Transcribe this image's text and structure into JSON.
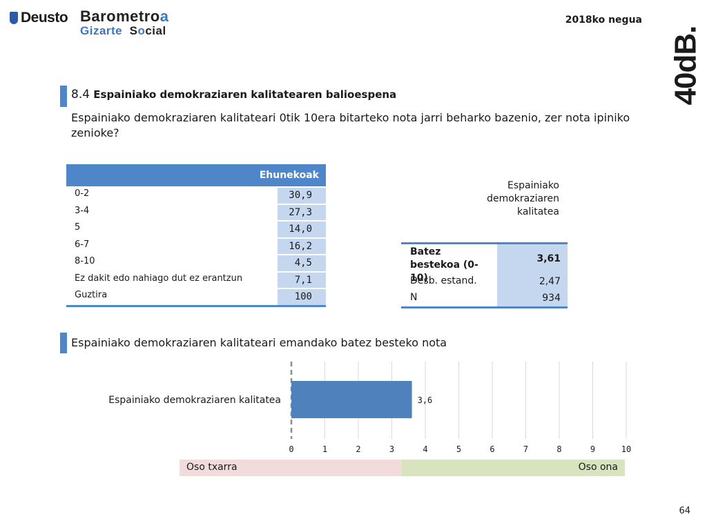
{
  "header": {
    "deusto": "Deusto",
    "barometro_main": "Barometro",
    "barometro_accent": "a",
    "gizarte": "Gizarte",
    "social_s": "S",
    "social_o": "o",
    "social_rest": "cial",
    "season": "2018ko negua",
    "brand": "40dB."
  },
  "section": {
    "number": "8.4",
    "title": "Espainiako demokraziaren kalitatearen balioespena",
    "question": "Espainiako demokraziaren kalitateari 0tik 10era bitarteko nota jarri beharko bazenio, zer nota ipiniko zenioke?"
  },
  "pct_table": {
    "header": "Ehunekoak",
    "rows": [
      {
        "label": "0-2",
        "value": "30,9"
      },
      {
        "label": "3-4",
        "value": "27,3"
      },
      {
        "label": "5",
        "value": "14,0"
      },
      {
        "label": "6-7",
        "value": "16,2"
      },
      {
        "label": "8-10",
        "value": "4,5"
      },
      {
        "label": "Ez dakit edo nahiago dut ez erantzun",
        "value": "7,1"
      },
      {
        "label": "Guztira",
        "value": "100"
      }
    ]
  },
  "stats_table": {
    "title_line1": "Espainiako",
    "title_line2": "demokraziaren",
    "title_line3": "kalitatea",
    "mean_label": "Batez bestekoa (0-10)",
    "mean_value": "3,61",
    "sd_label": "Desb. estand.",
    "sd_value": "2,47",
    "n_label": "N",
    "n_value": "934"
  },
  "section2": {
    "title": "Espainiako demokraziaren kalitateari emandako batez besteko nota"
  },
  "chart_data": {
    "type": "bar",
    "orientation": "horizontal",
    "categories": [
      "Espainiako demokraziaren kalitatea"
    ],
    "values": [
      3.6
    ],
    "value_labels": [
      "3,6"
    ],
    "xlim": [
      0,
      10
    ],
    "xticks": [
      "0",
      "1",
      "2",
      "3",
      "4",
      "5",
      "6",
      "7",
      "8",
      "9",
      "10"
    ],
    "grid": true,
    "bar_color": "#4f81bd"
  },
  "scale": {
    "bad_label": "Oso txarra",
    "good_label": "Oso ona"
  },
  "page_number": "64"
}
